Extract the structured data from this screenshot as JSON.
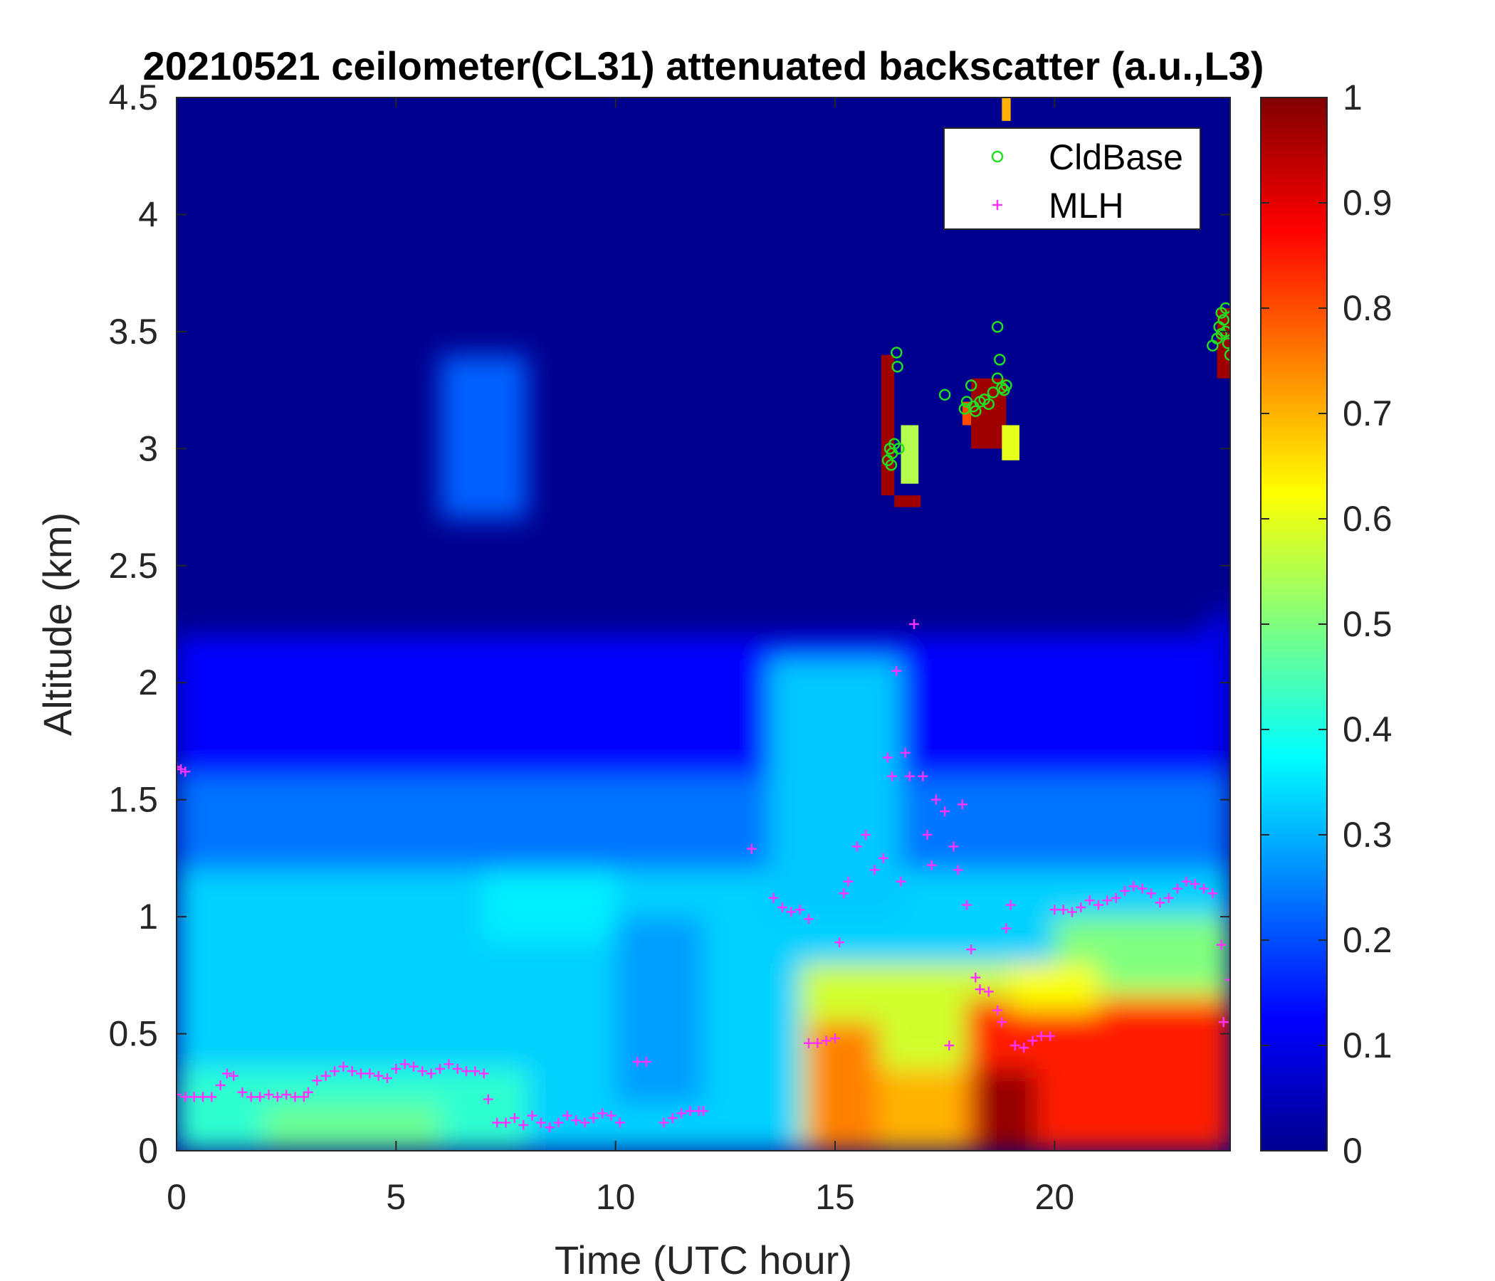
{
  "chart_data": {
    "type": "heatmap",
    "title": "20210521 ceilometer(CL31) attenuated backscatter (a.u.,L3)",
    "xlabel": "Time (UTC hour)",
    "ylabel": "Altitude (km)",
    "xlim": [
      0,
      24
    ],
    "ylim": [
      0,
      4.5
    ],
    "clim": [
      0,
      1
    ],
    "colormap": "jet",
    "x_ticks": [
      0,
      5,
      10,
      15,
      20
    ],
    "y_ticks": [
      0,
      0.5,
      1,
      1.5,
      2,
      2.5,
      3,
      3.5,
      4,
      4.5
    ],
    "colorbar_ticks": [
      0,
      0.1,
      0.2,
      0.3,
      0.4,
      0.5,
      0.6,
      0.7,
      0.8,
      0.9,
      1
    ],
    "legend_position": "top-right",
    "series": [
      {
        "name": "CldBase",
        "marker": "circle",
        "color": "#22dd22",
        "points": [
          [
            16.2,
            2.95
          ],
          [
            16.25,
            3.0
          ],
          [
            16.3,
            2.98
          ],
          [
            16.35,
            3.02
          ],
          [
            16.4,
            3.41
          ],
          [
            16.42,
            3.35
          ],
          [
            16.45,
            3.0
          ],
          [
            16.28,
            2.93
          ],
          [
            17.5,
            3.23
          ],
          [
            17.95,
            3.17
          ],
          [
            18.0,
            3.2
          ],
          [
            18.1,
            3.27
          ],
          [
            18.15,
            3.18
          ],
          [
            18.2,
            3.16
          ],
          [
            18.3,
            3.2
          ],
          [
            18.4,
            3.21
          ],
          [
            18.5,
            3.19
          ],
          [
            18.6,
            3.24
          ],
          [
            18.7,
            3.52
          ],
          [
            18.75,
            3.38
          ],
          [
            18.8,
            3.26
          ],
          [
            18.85,
            3.25
          ],
          [
            18.9,
            3.27
          ],
          [
            18.7,
            3.3
          ],
          [
            23.6,
            3.44
          ],
          [
            23.7,
            3.47
          ],
          [
            23.75,
            3.52
          ],
          [
            23.8,
            3.58
          ],
          [
            23.85,
            3.55
          ],
          [
            23.9,
            3.6
          ],
          [
            23.95,
            3.45
          ],
          [
            24.0,
            3.4
          ],
          [
            23.9,
            3.5
          ],
          [
            23.8,
            3.49
          ]
        ]
      },
      {
        "name": "MLH",
        "marker": "plus",
        "color": "#ff33ff",
        "points": [
          [
            0.0,
            1.64
          ],
          [
            0.1,
            1.63
          ],
          [
            0.2,
            1.62
          ],
          [
            0.0,
            0.24
          ],
          [
            0.2,
            0.23
          ],
          [
            0.4,
            0.23
          ],
          [
            0.6,
            0.23
          ],
          [
            0.8,
            0.23
          ],
          [
            1.0,
            0.28
          ],
          [
            1.15,
            0.33
          ],
          [
            1.3,
            0.32
          ],
          [
            1.5,
            0.25
          ],
          [
            1.7,
            0.23
          ],
          [
            1.9,
            0.23
          ],
          [
            2.1,
            0.24
          ],
          [
            2.3,
            0.23
          ],
          [
            2.5,
            0.24
          ],
          [
            2.7,
            0.23
          ],
          [
            2.9,
            0.23
          ],
          [
            3.0,
            0.25
          ],
          [
            3.2,
            0.3
          ],
          [
            3.4,
            0.32
          ],
          [
            3.6,
            0.34
          ],
          [
            3.8,
            0.36
          ],
          [
            4.0,
            0.34
          ],
          [
            4.2,
            0.33
          ],
          [
            4.4,
            0.33
          ],
          [
            4.6,
            0.32
          ],
          [
            4.8,
            0.31
          ],
          [
            5.0,
            0.35
          ],
          [
            5.2,
            0.37
          ],
          [
            5.4,
            0.36
          ],
          [
            5.6,
            0.34
          ],
          [
            5.8,
            0.33
          ],
          [
            6.0,
            0.35
          ],
          [
            6.2,
            0.37
          ],
          [
            6.4,
            0.35
          ],
          [
            6.6,
            0.34
          ],
          [
            6.8,
            0.34
          ],
          [
            7.0,
            0.33
          ],
          [
            7.1,
            0.22
          ],
          [
            7.3,
            0.12
          ],
          [
            7.5,
            0.12
          ],
          [
            7.7,
            0.14
          ],
          [
            7.9,
            0.11
          ],
          [
            8.1,
            0.15
          ],
          [
            8.3,
            0.12
          ],
          [
            8.5,
            0.1
          ],
          [
            8.7,
            0.12
          ],
          [
            8.9,
            0.15
          ],
          [
            9.1,
            0.13
          ],
          [
            9.3,
            0.12
          ],
          [
            9.5,
            0.14
          ],
          [
            9.7,
            0.16
          ],
          [
            9.9,
            0.15
          ],
          [
            10.1,
            0.12
          ],
          [
            10.5,
            0.38
          ],
          [
            10.7,
            0.38
          ],
          [
            11.1,
            0.12
          ],
          [
            11.3,
            0.14
          ],
          [
            11.5,
            0.16
          ],
          [
            11.7,
            0.17
          ],
          [
            11.9,
            0.17
          ],
          [
            12.0,
            0.17
          ],
          [
            13.1,
            1.29
          ],
          [
            13.6,
            1.08
          ],
          [
            13.8,
            1.04
          ],
          [
            14.0,
            1.02
          ],
          [
            14.2,
            1.03
          ],
          [
            14.4,
            0.99
          ],
          [
            14.4,
            0.46
          ],
          [
            14.6,
            0.46
          ],
          [
            14.8,
            0.47
          ],
          [
            15.0,
            0.48
          ],
          [
            15.1,
            0.89
          ],
          [
            15.2,
            1.1
          ],
          [
            15.3,
            1.15
          ],
          [
            15.5,
            1.3
          ],
          [
            15.7,
            1.35
          ],
          [
            15.9,
            1.2
          ],
          [
            16.1,
            1.25
          ],
          [
            16.2,
            1.68
          ],
          [
            16.3,
            1.6
          ],
          [
            16.4,
            2.05
          ],
          [
            16.5,
            1.15
          ],
          [
            16.6,
            1.7
          ],
          [
            16.7,
            1.6
          ],
          [
            16.8,
            2.25
          ],
          [
            17.0,
            1.6
          ],
          [
            17.1,
            1.35
          ],
          [
            17.2,
            1.22
          ],
          [
            17.3,
            1.5
          ],
          [
            17.5,
            1.45
          ],
          [
            17.7,
            1.3
          ],
          [
            17.8,
            1.2
          ],
          [
            17.6,
            0.45
          ],
          [
            17.9,
            1.48
          ],
          [
            18.0,
            1.05
          ],
          [
            18.1,
            0.86
          ],
          [
            18.2,
            0.74
          ],
          [
            18.3,
            0.69
          ],
          [
            18.5,
            0.68
          ],
          [
            18.7,
            0.6
          ],
          [
            18.8,
            0.55
          ],
          [
            18.9,
            0.95
          ],
          [
            19.0,
            1.05
          ],
          [
            19.1,
            0.45
          ],
          [
            19.3,
            0.44
          ],
          [
            19.5,
            0.47
          ],
          [
            19.7,
            0.49
          ],
          [
            19.9,
            0.49
          ],
          [
            20.0,
            1.03
          ],
          [
            20.2,
            1.03
          ],
          [
            20.4,
            1.02
          ],
          [
            20.6,
            1.04
          ],
          [
            20.8,
            1.07
          ],
          [
            21.0,
            1.05
          ],
          [
            21.2,
            1.07
          ],
          [
            21.4,
            1.08
          ],
          [
            21.6,
            1.11
          ],
          [
            21.8,
            1.13
          ],
          [
            22.0,
            1.12
          ],
          [
            22.2,
            1.1
          ],
          [
            22.4,
            1.06
          ],
          [
            22.6,
            1.08
          ],
          [
            22.8,
            1.12
          ],
          [
            23.0,
            1.15
          ],
          [
            23.2,
            1.14
          ],
          [
            23.4,
            1.12
          ],
          [
            23.6,
            1.1
          ],
          [
            23.8,
            0.88
          ],
          [
            23.85,
            0.55
          ],
          [
            24.0,
            0.73
          ]
        ]
      }
    ]
  }
}
